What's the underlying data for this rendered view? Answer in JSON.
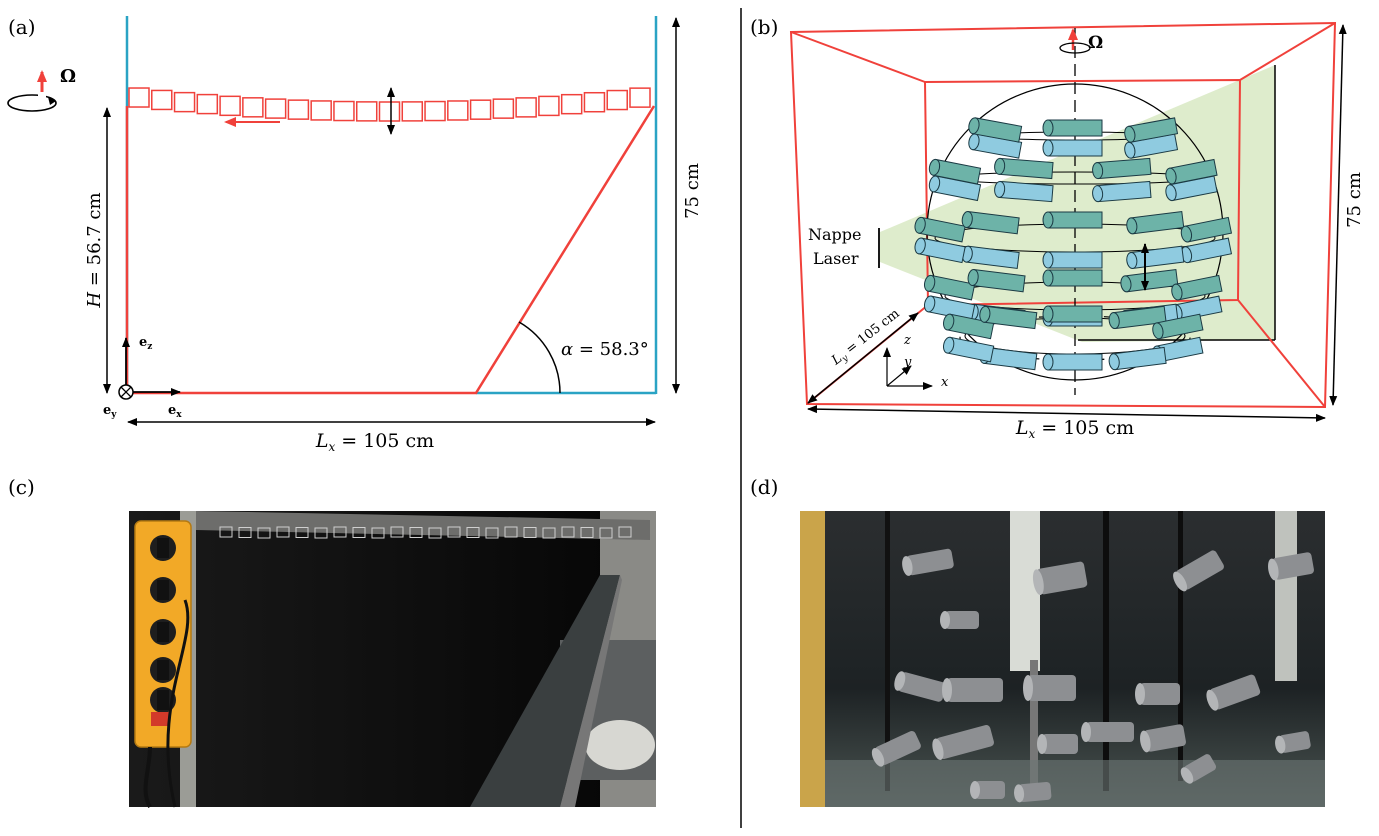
{
  "panels": {
    "a": {
      "label": "(a)",
      "omega": "Ω",
      "height_label_h": "H",
      "height_label_rest": " = 56.7 cm",
      "right_height": "75 cm",
      "angle_label_alpha": "α",
      "angle_label_rest": " = 58.3°",
      "ez": "e",
      "ez_sub": "z",
      "ey": "e",
      "ey_sub": "y",
      "ex": "e",
      "ex_sub": "x",
      "width_label_l": "L",
      "width_label_sub": "x",
      "width_label_rest": " = 105 cm"
    },
    "b": {
      "label": "(b)",
      "omega": "Ω",
      "right_height": "75 cm",
      "nappe": "Nappe",
      "laser": "Laser",
      "ly_l": "L",
      "ly_sub": "y",
      "ly_rest": " = 105 cm",
      "axis_z": "z",
      "axis_y": "y",
      "axis_x": "x",
      "width_label_l": "L",
      "width_label_sub": "x",
      "width_label_rest": " = 105 cm"
    },
    "c": {
      "label": "(c)"
    },
    "d": {
      "label": "(d)"
    }
  },
  "colors": {
    "red": "#f0413b",
    "cyan": "#2aa3c4",
    "cylinder": "#8fcbe0",
    "laser_sheet": "#dcebc9"
  }
}
